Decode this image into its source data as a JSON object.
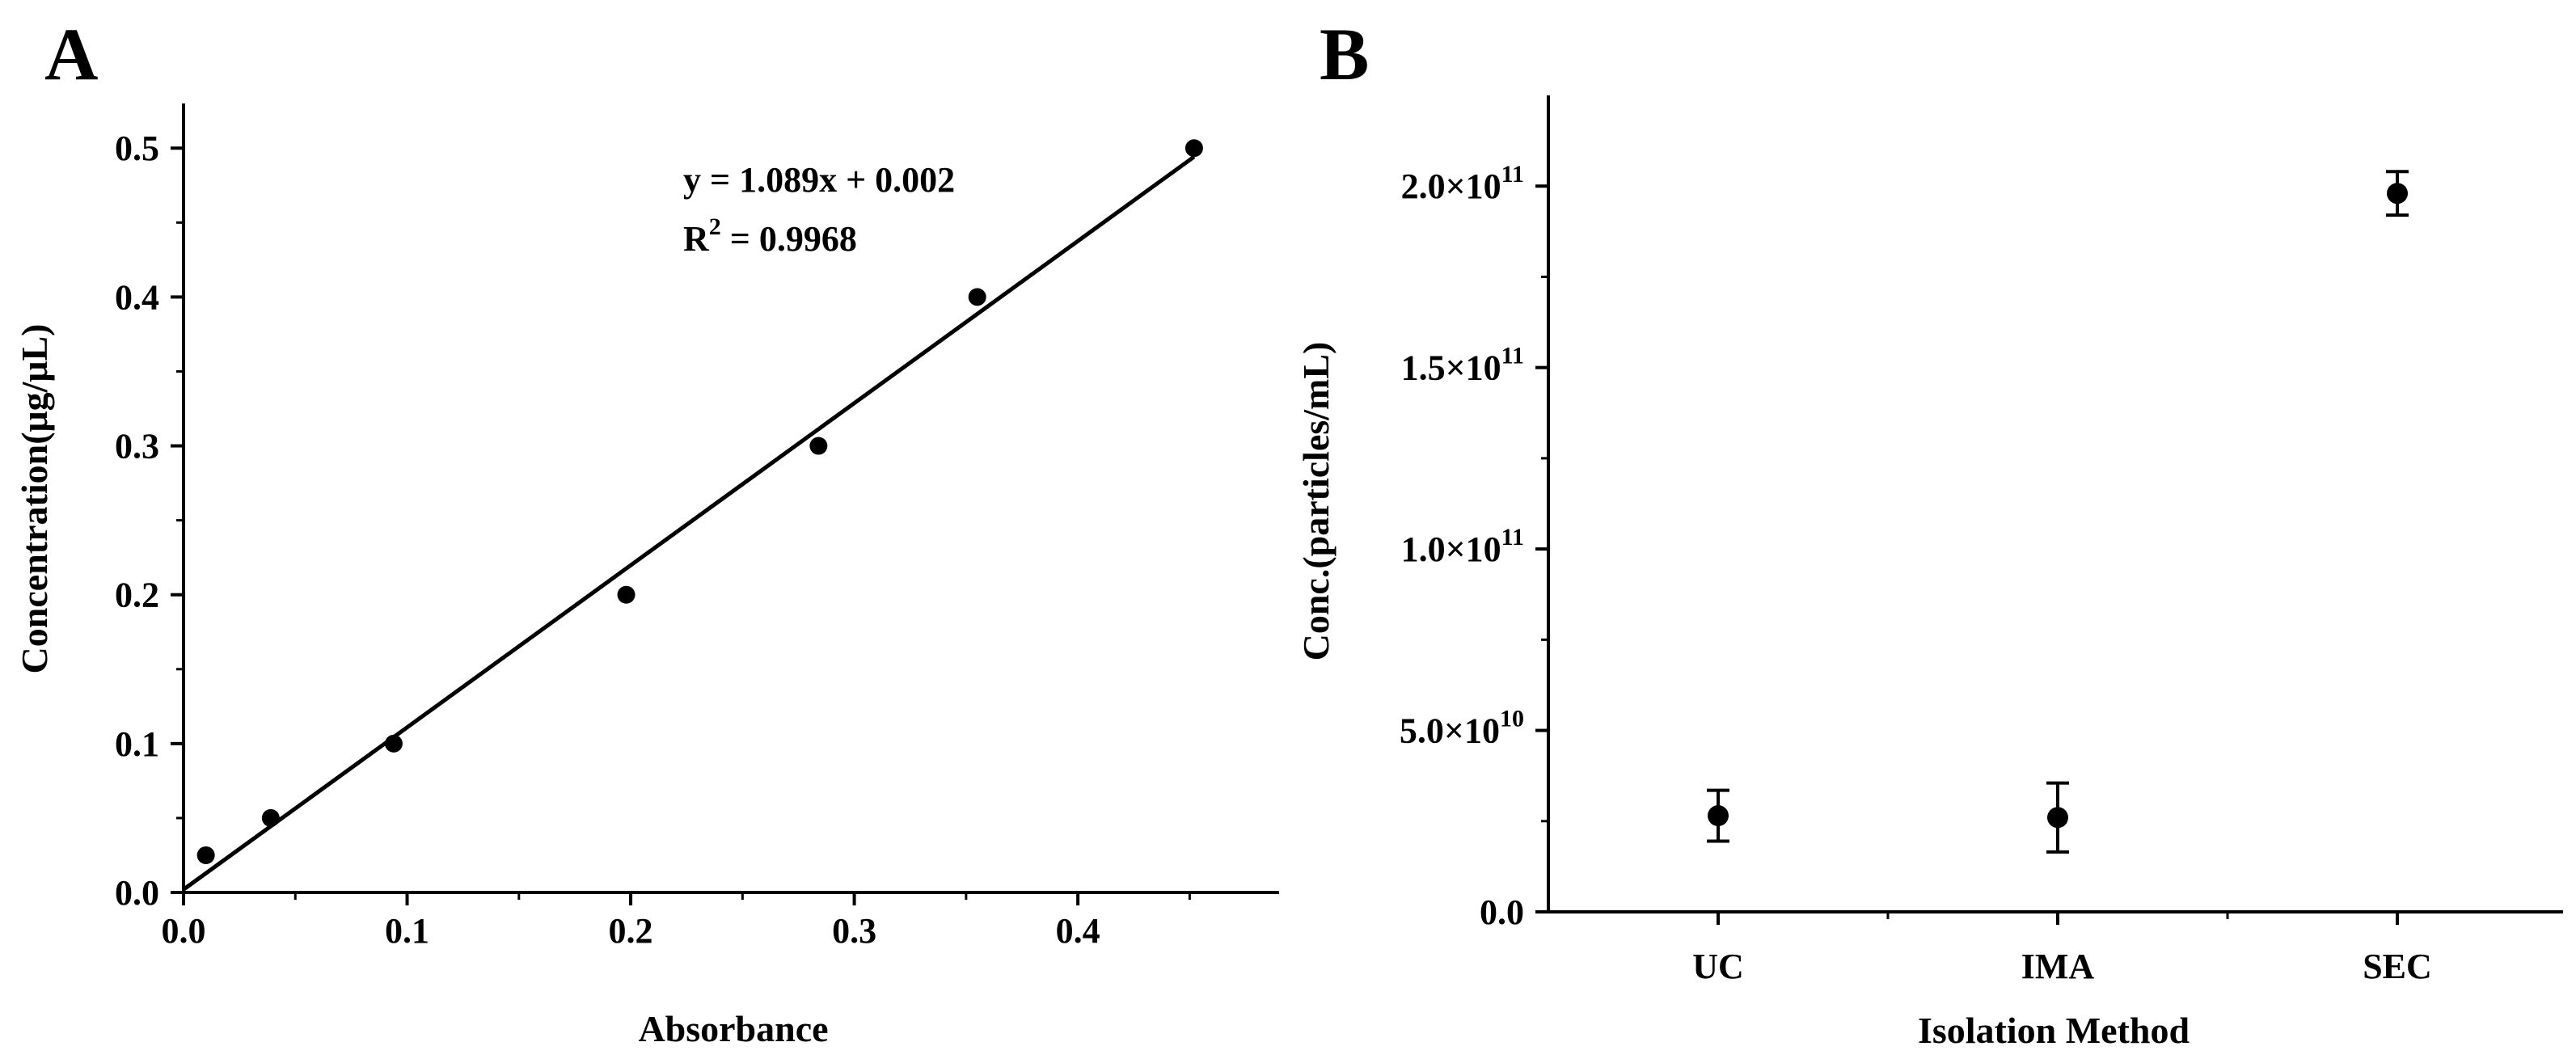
{
  "chart_data": [
    {
      "panel_label": "A",
      "type": "scatter",
      "xlabel": "Absorbance",
      "ylabel": "Concentration(μg/μL)",
      "xlim": [
        0,
        0.49
      ],
      "ylim": [
        0,
        0.53
      ],
      "xticks": [
        0.0,
        0.1,
        0.2,
        0.3,
        0.4
      ],
      "xtick_labels": [
        "0.0",
        "0.1",
        "0.2",
        "0.3",
        "0.4"
      ],
      "yticks": [
        0.0,
        0.1,
        0.2,
        0.3,
        0.4,
        0.5
      ],
      "ytick_labels": [
        "0.0",
        "0.1",
        "0.2",
        "0.3",
        "0.4",
        "0.5"
      ],
      "points": [
        {
          "x": 0.01,
          "y": 0.025
        },
        {
          "x": 0.039,
          "y": 0.05
        },
        {
          "x": 0.094,
          "y": 0.1
        },
        {
          "x": 0.198,
          "y": 0.2
        },
        {
          "x": 0.284,
          "y": 0.3
        },
        {
          "x": 0.355,
          "y": 0.4
        },
        {
          "x": 0.452,
          "y": 0.5
        }
      ],
      "fit": {
        "slope": 1.089,
        "intercept": 0.002,
        "x_range": [
          0.0,
          0.452
        ]
      },
      "annotation": {
        "equation": "y = 1.089x + 0.002",
        "r2_prefix": "R",
        "r2_superscript": "2",
        "r2_rest": " = 0.9968"
      }
    },
    {
      "panel_label": "B",
      "type": "scatter",
      "xlabel": "Isolation Method",
      "ylabel": "Conc.(particles/mL)",
      "categories": [
        "UC",
        "IMA",
        "SEC"
      ],
      "ylim": [
        0,
        225000000000.0
      ],
      "yticks": [
        0,
        50000000000.0,
        100000000000.0,
        150000000000.0,
        200000000000.0
      ],
      "ytick_labels": [
        {
          "mantissa": "0.0",
          "exp": ""
        },
        {
          "mantissa": "5.0×10",
          "exp": "10"
        },
        {
          "mantissa": "1.0×10",
          "exp": "11"
        },
        {
          "mantissa": "1.5×10",
          "exp": "11"
        },
        {
          "mantissa": "2.0×10",
          "exp": "11"
        }
      ],
      "values": [
        26500000000.0,
        26000000000.0,
        198000000000.0
      ],
      "errors": [
        7000000000.0,
        9500000000.0,
        6000000000.0
      ]
    }
  ]
}
